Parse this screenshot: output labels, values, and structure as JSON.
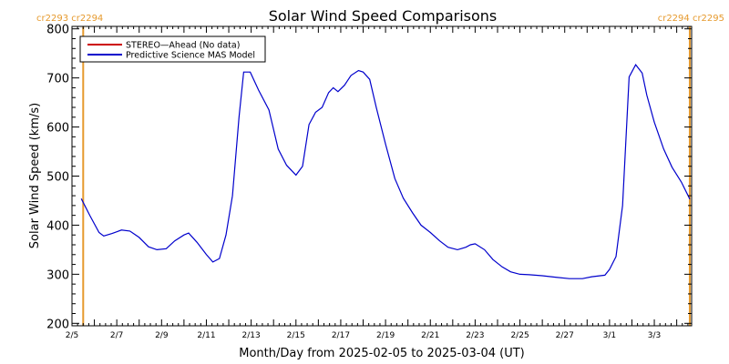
{
  "chart_data": {
    "type": "line",
    "title": "Solar Wind Speed Comparisons",
    "xlabel": "Month/Day from 2025-02-05 to 2025-03-04 (UT)",
    "ylabel": "Solar Wind Speed (km/s)",
    "ylim": [
      195,
      805
    ],
    "xlim": [
      "2025-02-05 00:00",
      "2025-03-04 16:00"
    ],
    "x_tick_labels": [
      "2/5",
      "2/7",
      "2/9",
      "2/11",
      "2/13",
      "2/15",
      "2/17",
      "2/19",
      "2/21",
      "2/23",
      "2/25",
      "2/27",
      "3/1",
      "3/3"
    ],
    "x_tick_dates": [
      "2025-02-05",
      "2025-02-07",
      "2025-02-09",
      "2025-02-11",
      "2025-02-13",
      "2025-02-15",
      "2025-02-17",
      "2025-02-19",
      "2025-02-21",
      "2025-02-23",
      "2025-02-25",
      "2025-02-27",
      "2025-03-01",
      "2025-03-03"
    ],
    "y_ticks": [
      200,
      300,
      400,
      500,
      600,
      700,
      800
    ],
    "y_tick_labels": [
      "200",
      "300",
      "400",
      "500",
      "600",
      "700",
      "800"
    ],
    "legend": {
      "placement": "top-left",
      "framed": true
    },
    "series": [
      {
        "name": "STEREO—Ahead (No data)",
        "color": "#cc0000",
        "x": [],
        "values": []
      },
      {
        "name": "Predictive Science MAS Model",
        "color": "#0000cc",
        "x": [
          "2025-02-05 10:00",
          "2025-02-05 19:00",
          "2025-02-06 05:00",
          "2025-02-06 10:00",
          "2025-02-06 19:00",
          "2025-02-07 05:00",
          "2025-02-07 14:00",
          "2025-02-08 00:00",
          "2025-02-08 10:00",
          "2025-02-08 19:00",
          "2025-02-09 05:00",
          "2025-02-09 14:00",
          "2025-02-10 00:00",
          "2025-02-10 05:00",
          "2025-02-10 14:00",
          "2025-02-11 00:00",
          "2025-02-11 07:00",
          "2025-02-11 14:00",
          "2025-02-11 21:00",
          "2025-02-12 04:00",
          "2025-02-12 11:00",
          "2025-02-12 16:00",
          "2025-02-12 23:00",
          "2025-02-13 08:00",
          "2025-02-13 19:00",
          "2025-02-14 05:00",
          "2025-02-14 14:00",
          "2025-02-15 00:00",
          "2025-02-15 07:00",
          "2025-02-15 14:00",
          "2025-02-15 21:00",
          "2025-02-16 04:00",
          "2025-02-16 11:00",
          "2025-02-16 16:00",
          "2025-02-16 21:00",
          "2025-02-17 04:00",
          "2025-02-17 11:00",
          "2025-02-17 19:00",
          "2025-02-18 00:00",
          "2025-02-18 07:00",
          "2025-02-18 14:00",
          "2025-02-19 00:00",
          "2025-02-19 10:00",
          "2025-02-19 19:00",
          "2025-02-20 05:00",
          "2025-02-20 14:00",
          "2025-02-21 00:00",
          "2025-02-21 10:00",
          "2025-02-21 19:00",
          "2025-02-22 05:00",
          "2025-02-22 14:00",
          "2025-02-22 19:00",
          "2025-02-23 00:00",
          "2025-02-23 10:00",
          "2025-02-23 19:00",
          "2025-02-24 05:00",
          "2025-02-24 14:00",
          "2025-02-25 00:00",
          "2025-02-25 10:00",
          "2025-02-26 00:00",
          "2025-02-26 14:00",
          "2025-02-27 05:00",
          "2025-02-27 19:00",
          "2025-02-28 05:00",
          "2025-02-28 19:00",
          "2025-03-01 00:00",
          "2025-03-01 07:00",
          "2025-03-01 14:00",
          "2025-03-01 21:00",
          "2025-03-02 04:00",
          "2025-03-02 11:00",
          "2025-03-02 16:00",
          "2025-03-03 00:00",
          "2025-03-03 10:00",
          "2025-03-03 19:00",
          "2025-03-04 05:00",
          "2025-03-04 14:00"
        ],
        "values": [
          454,
          420,
          385,
          378,
          383,
          390,
          388,
          375,
          356,
          350,
          352,
          368,
          380,
          384,
          365,
          340,
          325,
          332,
          380,
          460,
          620,
          712,
          712,
          675,
          635,
          555,
          522,
          502,
          520,
          605,
          630,
          640,
          670,
          680,
          672,
          685,
          705,
          715,
          712,
          697,
          640,
          565,
          495,
          455,
          425,
          400,
          385,
          368,
          355,
          350,
          355,
          360,
          362,
          350,
          330,
          315,
          305,
          300,
          299,
          297,
          294,
          291,
          291,
          295,
          298,
          310,
          336,
          440,
          702,
          727,
          710,
          665,
          610,
          555,
          518,
          488,
          453
        ]
      }
    ],
    "carrington_markers": [
      {
        "date": "2025-02-05 12:00",
        "color": "#e69a2e"
      },
      {
        "date": "2025-03-04 14:00",
        "color": "#e69a2e"
      }
    ],
    "corner_labels": {
      "left": "cr2293 cr2294",
      "right": "cr2294 cr2295"
    },
    "grid": false
  }
}
